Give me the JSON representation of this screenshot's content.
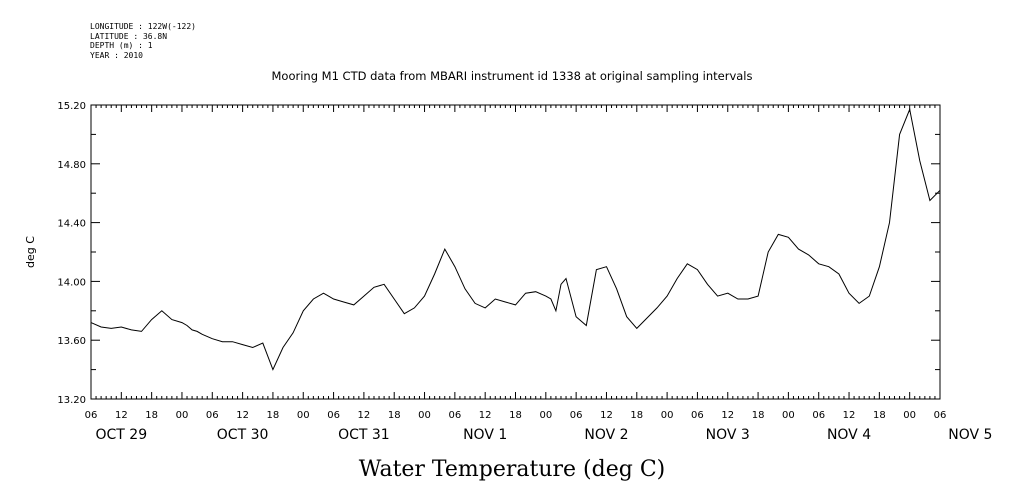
{
  "meta": {
    "longitude": "LONGITUDE : 122W(-122)",
    "latitude": "LATITUDE : 36.8N",
    "depth": "DEPTH (m) : 1",
    "year": "YEAR : 2010"
  },
  "chart_data": {
    "type": "line",
    "title": "Mooring M1 CTD data from MBARI instrument id 1338 at original sampling intervals",
    "xlabel": "Water Temperature (deg C)",
    "ylabel": "deg C",
    "ylim": [
      13.2,
      15.2
    ],
    "xlim": [
      "OCT 29 06",
      "NOV 5 06"
    ],
    "yticks": [
      "13.20",
      "13.60",
      "14.00",
      "14.40",
      "14.80",
      "15.20"
    ],
    "xtick_hours": [
      "06",
      "12",
      "18",
      "00",
      "06",
      "12",
      "18",
      "00",
      "06",
      "12",
      "18",
      "00",
      "06",
      "12",
      "18",
      "00",
      "06",
      "12",
      "18",
      "00",
      "06",
      "12",
      "18",
      "00",
      "06",
      "12",
      "18",
      "00",
      "06"
    ],
    "day_labels": [
      "OCT 29",
      "OCT 30",
      "OCT 31",
      "NOV 1",
      "NOV 2",
      "NOV 3",
      "NOV 4",
      "NOV 5"
    ],
    "grid": false,
    "series": [
      {
        "x_hours_since_oct29_06": [
          0,
          2,
          4,
          6,
          8,
          10,
          12,
          14,
          16,
          18,
          19,
          20,
          21,
          22,
          24,
          26,
          28,
          30,
          32,
          34,
          36,
          38,
          40,
          42,
          44,
          46,
          47,
          48,
          50,
          52,
          54,
          56,
          58,
          60,
          62,
          64,
          66,
          68,
          70,
          72,
          74,
          76,
          78,
          80,
          82,
          84,
          86,
          88,
          90,
          91,
          92,
          93,
          94,
          96,
          98,
          100,
          102,
          104,
          106,
          108,
          110,
          112,
          114,
          116,
          118,
          120,
          122,
          124,
          126,
          128,
          130,
          132,
          134,
          136,
          138,
          140,
          142,
          144,
          146,
          148,
          150,
          152,
          154,
          156,
          158,
          160,
          162,
          164,
          166,
          168
        ],
        "values": [
          13.72,
          13.69,
          13.68,
          13.69,
          13.67,
          13.66,
          13.74,
          13.8,
          13.74,
          13.72,
          13.7,
          13.67,
          13.66,
          13.64,
          13.61,
          13.59,
          13.59,
          13.57,
          13.55,
          13.58,
          13.4,
          13.55,
          13.65,
          13.8,
          13.88,
          13.92,
          13.9,
          13.88,
          13.86,
          13.84,
          13.9,
          13.96,
          13.98,
          13.88,
          13.78,
          13.82,
          13.9,
          14.05,
          14.22,
          14.1,
          13.95,
          13.85,
          13.82,
          13.88,
          13.86,
          13.84,
          13.92,
          13.93,
          13.9,
          13.88,
          13.8,
          13.98,
          14.02,
          13.76,
          13.7,
          14.08,
          14.1,
          13.95,
          13.76,
          13.68,
          13.75,
          13.82,
          13.9,
          14.02,
          14.12,
          14.08,
          13.98,
          13.9,
          13.92,
          13.88,
          13.88,
          13.9,
          14.2,
          14.32,
          14.3,
          14.22,
          14.18,
          14.12,
          14.1,
          14.05,
          13.92,
          13.85,
          13.9,
          14.1,
          14.4,
          15.0,
          15.17,
          14.82,
          14.55,
          14.62
        ]
      }
    ]
  }
}
